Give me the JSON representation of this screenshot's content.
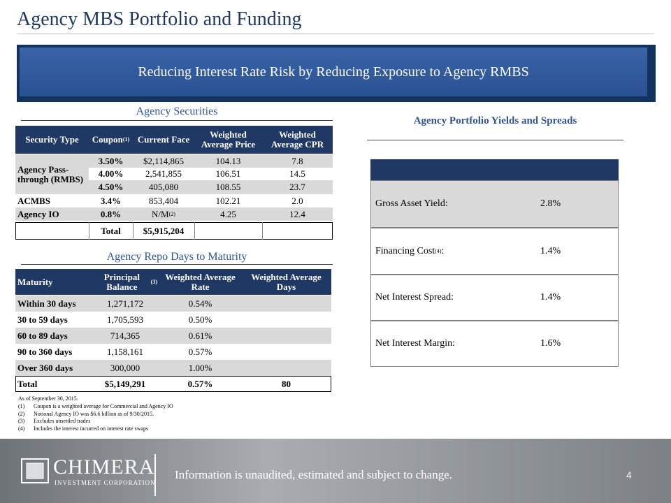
{
  "header": {
    "title": "Agency MBS Portfolio and Funding"
  },
  "banner": {
    "text": "Reducing Interest Rate Risk by Reducing Exposure to Agency RMBS"
  },
  "securities": {
    "title": "Agency Securities",
    "headers": [
      "Security Type",
      {
        "text": "Coupon",
        "note": "(1)"
      },
      "Current Face",
      "Weighted Average Price",
      "Weighted Average CPR"
    ],
    "groups": [
      {
        "label": "Agency Pass-through (RMBS)",
        "rows": [
          [
            "3.50%",
            "$2,114,865",
            "104.13",
            "7.8"
          ],
          [
            "4.00%",
            "2,541,855",
            "106.51",
            "14.5"
          ],
          [
            "4.50%",
            "405,080",
            "108.55",
            "23.7"
          ]
        ]
      },
      {
        "label": "ACMBS",
        "rows": [
          [
            "3.4%",
            "853,404",
            "102.21",
            "2.0"
          ]
        ]
      },
      {
        "label": "Agency IO",
        "rows": [
          [
            "0.8%",
            {
              "text": "N/M",
              "note": "(2)"
            },
            "4.25",
            "12.4"
          ]
        ]
      }
    ],
    "total": {
      "label": "Total",
      "value": "$5,915,204"
    }
  },
  "repo": {
    "title": "Agency Repo Days to Maturity",
    "headers": [
      "Maturity",
      {
        "text": "Principal Balance",
        "note": "(3)"
      },
      "Weighted Average Rate",
      "Weighted Average Days"
    ],
    "rows": [
      [
        "Within 30 days",
        "1,271,172",
        "0.54%"
      ],
      [
        "30 to 59 days",
        "1,705,593",
        "0.50%"
      ],
      [
        "60 to 89 days",
        "714,365",
        "0.61%"
      ],
      [
        "90 to 360 days",
        "1,158,161",
        "0.57%"
      ],
      [
        "Over 360 days",
        "300,000",
        "1.00%"
      ]
    ],
    "total": [
      "Total",
      "$5,149,291",
      "0.57%",
      "80"
    ]
  },
  "yields": {
    "title": "Agency Portfolio Yields and Spreads",
    "rows": [
      [
        "Gross Asset Yield:",
        "2.8%"
      ],
      [
        {
          "text": "Financing Cost",
          "note": "(4)",
          "after": ":"
        },
        "1.4%"
      ],
      [
        "Net Interest Spread:",
        "1.4%"
      ],
      [
        "Net Interest Margin:",
        "1.6%"
      ]
    ]
  },
  "footnotes": {
    "date": "As of September 30, 2015.",
    "items": [
      [
        "(1)",
        "Coupon is a weighted average for Commercial and Agency IO"
      ],
      [
        "(2)",
        "Notional Agency IO was $6.6 billion as of 9/30/2015."
      ],
      [
        "(3)",
        "Excludes unsettled trades"
      ],
      [
        "(4)",
        "Includes the interest incurred on interest rate swaps"
      ]
    ]
  },
  "footer": {
    "logo": "CHIMERA",
    "logo_sub": "INVESTMENT CORPORATION",
    "disclaimer": "Information is unaudited, estimated and subject to change.",
    "page": "4"
  }
}
